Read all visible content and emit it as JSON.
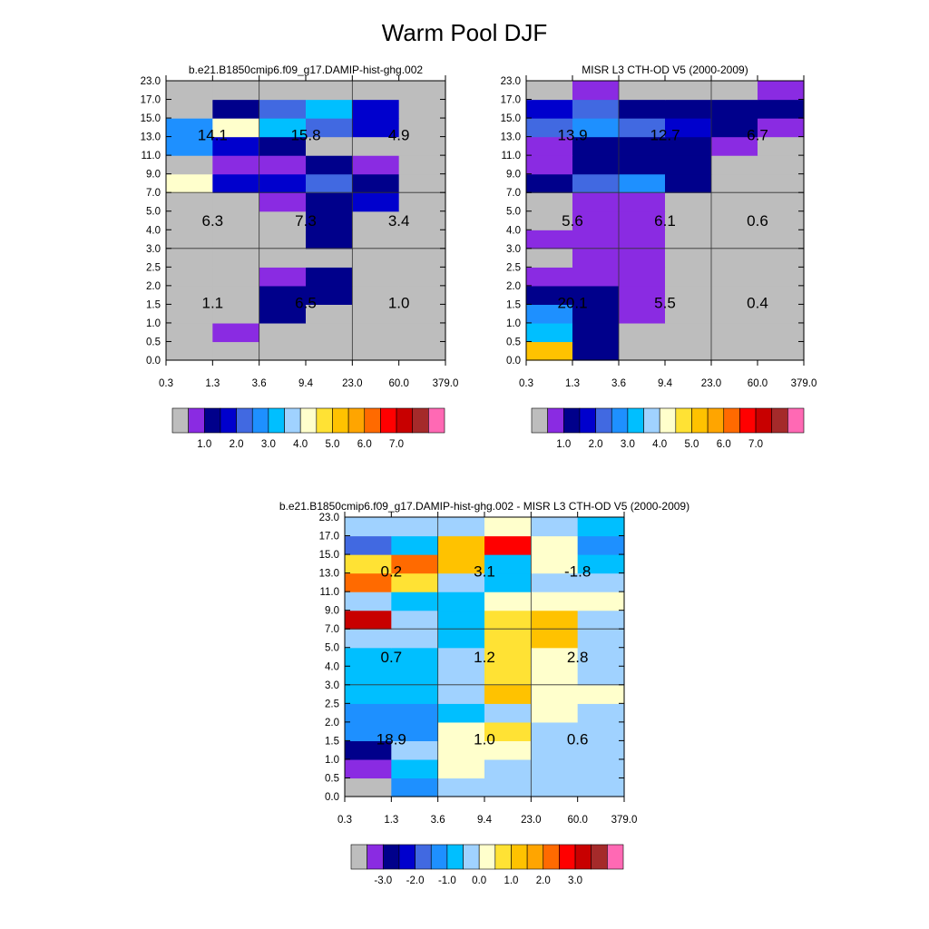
{
  "title": "Warm Pool DJF",
  "palette": [
    "#bdbdbd",
    "#8a2be2",
    "#00008b",
    "#0000cd",
    "#4169e1",
    "#1e90ff",
    "#00bfff",
    "#a0d2ff",
    "#ffffcc",
    "#ffe234",
    "#ffc200",
    "#ffa500",
    "#ff6a00",
    "#ff0000",
    "#c80000",
    "#a52a2a",
    "#ff69b4"
  ],
  "chart_data": [
    {
      "type": "heatmap",
      "title": "b.e21.B1850cmip6.f09_g17.DAMIP-hist-ghg.002",
      "x_ticks": [
        "0.3",
        "1.3",
        "3.6",
        "9.4",
        "23.0",
        "60.0",
        "379.0"
      ],
      "y_ticks": [
        "0.0",
        "0.5",
        "1.0",
        "1.5",
        "2.0",
        "2.5",
        "3.0",
        "4.0",
        "5.0",
        "7.0",
        "9.0",
        "11.0",
        "13.0",
        "15.0",
        "17.0",
        "23.0"
      ],
      "cell_colors": [
        [
          0,
          0,
          0,
          0,
          0,
          0
        ],
        [
          0,
          1,
          0,
          0,
          0,
          0
        ],
        [
          0,
          0,
          2,
          0,
          0,
          0
        ],
        [
          0,
          0,
          2,
          2,
          0,
          0
        ],
        [
          0,
          0,
          1,
          2,
          0,
          0
        ],
        [
          0,
          0,
          0,
          0,
          0,
          0
        ],
        [
          0,
          0,
          0,
          2,
          0,
          0
        ],
        [
          0,
          0,
          0,
          2,
          0,
          0
        ],
        [
          0,
          0,
          1,
          2,
          3,
          0
        ],
        [
          8,
          3,
          3,
          4,
          2,
          0
        ],
        [
          0,
          1,
          1,
          2,
          1,
          0
        ],
        [
          5,
          3,
          2,
          0,
          0,
          0
        ],
        [
          5,
          8,
          6,
          4,
          3,
          0
        ],
        [
          0,
          2,
          4,
          6,
          3,
          0
        ],
        [
          0,
          0,
          0,
          0,
          0,
          0
        ]
      ],
      "annotations": [
        [
          "1.1",
          "6.5",
          "1.0"
        ],
        [
          "6.3",
          "7.3",
          "3.4"
        ],
        [
          "14.1",
          "15.8",
          "4.9"
        ]
      ],
      "colorbar_labels": [
        "1.0",
        "2.0",
        "3.0",
        "4.0",
        "5.0",
        "6.0",
        "7.0"
      ]
    },
    {
      "type": "heatmap",
      "title": "MISR L3 CTH-OD V5 (2000-2009)",
      "x_ticks": [
        "0.3",
        "1.3",
        "3.6",
        "9.4",
        "23.0",
        "60.0",
        "379.0"
      ],
      "y_ticks": [
        "0.0",
        "0.5",
        "1.0",
        "1.5",
        "2.0",
        "2.5",
        "3.0",
        "4.0",
        "5.0",
        "7.0",
        "9.0",
        "11.0",
        "13.0",
        "15.0",
        "17.0",
        "23.0"
      ],
      "cell_colors": [
        [
          10,
          2,
          0,
          0,
          0,
          0
        ],
        [
          6,
          2,
          0,
          0,
          0,
          0
        ],
        [
          5,
          2,
          1,
          0,
          0,
          0
        ],
        [
          2,
          2,
          1,
          0,
          0,
          0
        ],
        [
          1,
          1,
          1,
          0,
          0,
          0
        ],
        [
          0,
          1,
          1,
          0,
          0,
          0
        ],
        [
          1,
          1,
          1,
          0,
          0,
          0
        ],
        [
          0,
          1,
          1,
          0,
          0,
          0
        ],
        [
          0,
          1,
          1,
          0,
          0,
          0
        ],
        [
          2,
          4,
          5,
          2,
          0,
          0
        ],
        [
          1,
          2,
          2,
          2,
          0,
          0
        ],
        [
          1,
          2,
          2,
          2,
          1,
          0
        ],
        [
          4,
          5,
          4,
          3,
          2,
          1
        ],
        [
          3,
          4,
          2,
          2,
          2,
          2
        ],
        [
          0,
          1,
          0,
          0,
          0,
          1
        ]
      ],
      "annotations": [
        [
          "20.1",
          "5.5",
          "0.4"
        ],
        [
          "5.6",
          "6.1",
          "0.6"
        ],
        [
          "13.9",
          "12.7",
          "6.7"
        ]
      ],
      "colorbar_labels": [
        "1.0",
        "2.0",
        "3.0",
        "4.0",
        "5.0",
        "6.0",
        "7.0"
      ]
    },
    {
      "type": "heatmap",
      "title": "b.e21.B1850cmip6.f09_g17.DAMIP-hist-ghg.002 - MISR L3 CTH-OD V5 (2000-2009)",
      "x_ticks": [
        "0.3",
        "1.3",
        "3.6",
        "9.4",
        "23.0",
        "60.0",
        "379.0"
      ],
      "y_ticks": [
        "0.0",
        "0.5",
        "1.0",
        "1.5",
        "2.0",
        "2.5",
        "3.0",
        "4.0",
        "5.0",
        "7.0",
        "9.0",
        "11.0",
        "13.0",
        "15.0",
        "17.0",
        "23.0"
      ],
      "cell_colors": [
        [
          0,
          5,
          7,
          7,
          7,
          7
        ],
        [
          1,
          6,
          8,
          7,
          7,
          7
        ],
        [
          2,
          7,
          8,
          8,
          7,
          7
        ],
        [
          5,
          5,
          8,
          9,
          7,
          7
        ],
        [
          5,
          5,
          6,
          7,
          8,
          7
        ],
        [
          6,
          6,
          7,
          10,
          8,
          8
        ],
        [
          6,
          6,
          7,
          9,
          8,
          7
        ],
        [
          6,
          6,
          7,
          9,
          8,
          7
        ],
        [
          7,
          7,
          6,
          9,
          10,
          7
        ],
        [
          14,
          7,
          6,
          9,
          10,
          7
        ],
        [
          7,
          6,
          6,
          8,
          8,
          8
        ],
        [
          12,
          9,
          7,
          6,
          7,
          7
        ],
        [
          9,
          12,
          10,
          6,
          8,
          6
        ],
        [
          4,
          6,
          10,
          13,
          8,
          5
        ],
        [
          7,
          7,
          7,
          8,
          7,
          6
        ]
      ],
      "annotations": [
        [
          "18.9",
          "1.0",
          "0.6"
        ],
        [
          "0.7",
          "1.2",
          "2.8"
        ],
        [
          "0.2",
          "3.1",
          "-1.8"
        ]
      ],
      "colorbar_labels": [
        "-3.0",
        "-2.0",
        "-1.0",
        "0.0",
        "1.0",
        "2.0",
        "3.0"
      ]
    }
  ]
}
